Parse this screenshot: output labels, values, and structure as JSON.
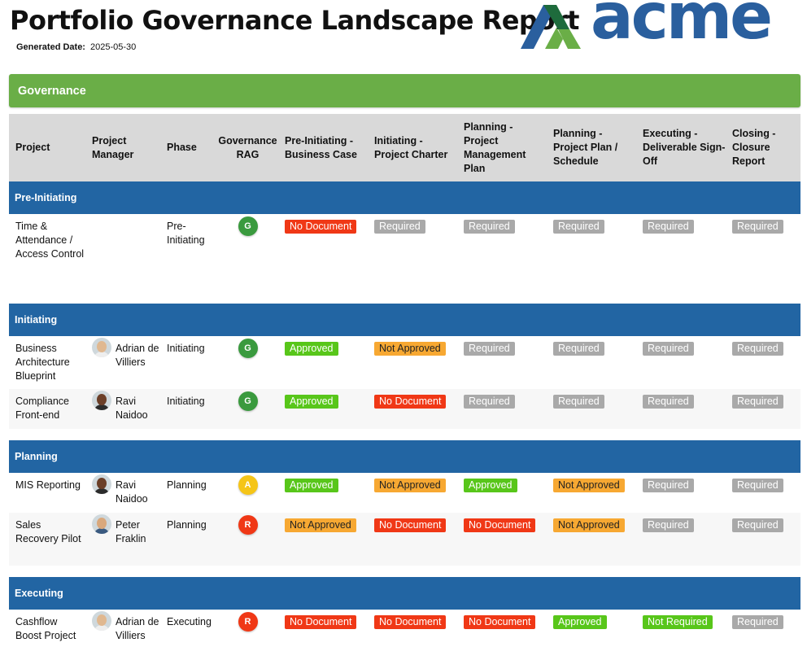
{
  "header": {
    "title": "Portfolio Governance Landscape Report",
    "generated_label": "Generated Date:",
    "generated_value": "2025-05-30",
    "logo_text": "acme"
  },
  "section_title": "Governance",
  "columns": [
    "Project",
    "Project Manager",
    "Phase",
    "Governance RAG",
    "Pre-Initiating - Business Case",
    "Initiating - Project Charter",
    "Planning - Project Management Plan",
    "Planning - Project Plan / Schedule",
    "Executing - Deliverable Sign-Off",
    "Closing - Closure Report"
  ],
  "colors": {
    "section_green": "#6aae47",
    "group_blue": "#2265a3",
    "rag_green": "#3a9a3e",
    "rag_amber": "#f5c518",
    "rag_red": "#f03816"
  },
  "groups": [
    {
      "name": "Pre-Initiating",
      "rows": [
        {
          "project": "Time & Attendance / Access Control",
          "manager": "",
          "phase": "Pre-Initiating",
          "rag": "G",
          "docs": [
            "No Document",
            "Required",
            "Required",
            "Required",
            "Required",
            "Required"
          ]
        }
      ]
    },
    {
      "name": "Initiating",
      "rows": [
        {
          "project": "Business Architecture Blueprint",
          "manager": "Adrian de Villiers",
          "phase": "Initiating",
          "rag": "G",
          "docs": [
            "Approved",
            "Not Approved",
            "Required",
            "Required",
            "Required",
            "Required"
          ]
        },
        {
          "project": "Compliance Front-end",
          "manager": "Ravi Naidoo",
          "phase": "Initiating",
          "rag": "G",
          "docs": [
            "Approved",
            "No Document",
            "Required",
            "Required",
            "Required",
            "Required"
          ]
        }
      ]
    },
    {
      "name": "Planning",
      "rows": [
        {
          "project": "MIS Reporting",
          "manager": "Ravi Naidoo",
          "phase": "Planning",
          "rag": "A",
          "docs": [
            "Approved",
            "Not Approved",
            "Approved",
            "Not Approved",
            "Required",
            "Required"
          ]
        },
        {
          "project": "Sales Recovery Pilot",
          "manager": "Peter Fraklin",
          "phase": "Planning",
          "rag": "R",
          "docs": [
            "Not Approved",
            "No Document",
            "No Document",
            "Not Approved",
            "Required",
            "Required"
          ]
        }
      ]
    },
    {
      "name": "Executing",
      "rows": [
        {
          "project": "Cashflow Boost Project",
          "manager": "Adrian de Villiers",
          "phase": "Executing",
          "rag": "R",
          "docs": [
            "No Document",
            "No Document",
            "No Document",
            "Approved",
            "Not Required",
            "Required"
          ]
        }
      ]
    }
  ]
}
